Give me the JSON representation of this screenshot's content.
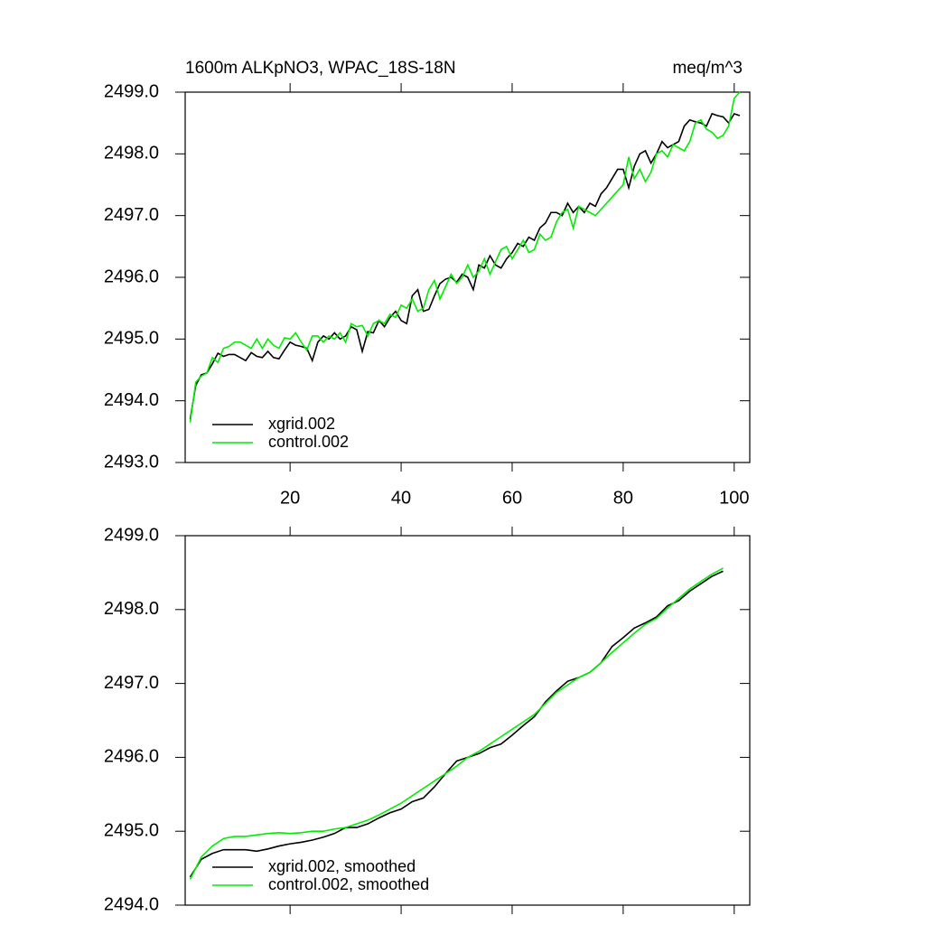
{
  "chart_data": [
    {
      "type": "line",
      "title": "1600m ALKpNO3, WPAC_18S-18N",
      "units": "meq/m^3",
      "x": [
        2,
        3,
        4,
        5,
        6,
        7,
        8,
        9,
        10,
        11,
        12,
        13,
        14,
        15,
        16,
        17,
        18,
        19,
        20,
        21,
        22,
        23,
        24,
        25,
        26,
        27,
        28,
        29,
        30,
        31,
        32,
        33,
        34,
        35,
        36,
        37,
        38,
        39,
        40,
        41,
        42,
        43,
        44,
        45,
        46,
        47,
        48,
        49,
        50,
        51,
        52,
        53,
        54,
        55,
        56,
        57,
        58,
        59,
        60,
        61,
        62,
        63,
        64,
        65,
        66,
        67,
        68,
        69,
        70,
        71,
        72,
        73,
        74,
        75,
        76,
        77,
        78,
        79,
        80,
        81,
        82,
        83,
        84,
        85,
        86,
        87,
        88,
        89,
        90,
        91,
        92,
        93,
        94,
        95,
        96,
        97,
        98,
        99,
        100,
        101
      ],
      "series": [
        {
          "name": "xgrid.002",
          "color": "#000000",
          "values": [
            2493.7,
            2494.25,
            2494.42,
            2494.45,
            2494.6,
            2494.77,
            2494.72,
            2494.75,
            2494.75,
            2494.7,
            2494.65,
            2494.78,
            2494.72,
            2494.7,
            2494.8,
            2494.7,
            2494.68,
            2494.82,
            2494.95,
            2494.9,
            2494.88,
            2494.85,
            2494.65,
            2494.95,
            2495.05,
            2495.0,
            2495.1,
            2495.0,
            2495.05,
            2495.2,
            2495.15,
            2494.8,
            2495.12,
            2495.1,
            2495.3,
            2495.2,
            2495.35,
            2495.45,
            2495.3,
            2495.25,
            2495.7,
            2495.8,
            2495.45,
            2495.48,
            2495.7,
            2495.9,
            2495.97,
            2496.0,
            2495.92,
            2496.05,
            2496.0,
            2495.8,
            2496.2,
            2496.15,
            2496.35,
            2496.2,
            2496.15,
            2496.3,
            2496.4,
            2496.55,
            2496.5,
            2496.65,
            2496.6,
            2496.8,
            2496.88,
            2497.05,
            2497.05,
            2497.0,
            2497.2,
            2497.05,
            2497.15,
            2497.05,
            2497.2,
            2497.15,
            2497.35,
            2497.45,
            2497.6,
            2497.75,
            2497.75,
            2497.45,
            2497.8,
            2498.0,
            2498.05,
            2497.85,
            2498.0,
            2498.2,
            2498.1,
            2498.15,
            2498.2,
            2498.45,
            2498.55,
            2498.52,
            2498.5,
            2498.45,
            2498.65,
            2498.62,
            2498.6,
            2498.5,
            2498.65,
            2498.62
          ]
        },
        {
          "name": "control.002",
          "color": "#00ee00",
          "values": [
            2493.65,
            2494.3,
            2494.4,
            2494.45,
            2494.7,
            2494.62,
            2494.85,
            2494.88,
            2494.95,
            2494.95,
            2494.9,
            2494.85,
            2495.0,
            2494.85,
            2495.0,
            2494.9,
            2494.85,
            2495.02,
            2495.0,
            2495.1,
            2494.95,
            2494.82,
            2495.05,
            2495.05,
            2494.95,
            2495.05,
            2495.0,
            2495.1,
            2494.95,
            2495.25,
            2495.2,
            2495.22,
            2495.05,
            2495.25,
            2495.3,
            2495.25,
            2495.4,
            2495.35,
            2495.55,
            2495.5,
            2495.65,
            2495.45,
            2495.5,
            2495.8,
            2495.95,
            2495.65,
            2495.85,
            2496.05,
            2495.9,
            2496.0,
            2496.2,
            2496.0,
            2496.1,
            2496.3,
            2496.05,
            2496.25,
            2496.45,
            2496.5,
            2496.3,
            2496.45,
            2496.6,
            2496.4,
            2496.45,
            2496.7,
            2496.6,
            2496.65,
            2496.9,
            2497.05,
            2497.1,
            2496.8,
            2497.15,
            2497.1,
            2497.05,
            2497.0,
            2497.1,
            2497.2,
            2497.3,
            2497.4,
            2497.5,
            2497.95,
            2497.6,
            2497.75,
            2497.55,
            2497.7,
            2498.0,
            2498.05,
            2497.95,
            2498.15,
            2498.1,
            2498.05,
            2498.2,
            2498.5,
            2498.55,
            2498.4,
            2498.35,
            2498.25,
            2498.3,
            2498.45,
            2498.9,
            2499.0
          ]
        }
      ],
      "xlim": [
        1.1,
        102.8
      ],
      "xticks": [
        20,
        40,
        60,
        80,
        100
      ],
      "ylim": [
        2493,
        2499
      ],
      "yticks": [
        {
          "value": 2493,
          "label": "2493.0"
        },
        {
          "value": 2494,
          "label": "2494.0"
        },
        {
          "value": 2495,
          "label": "2495.0"
        },
        {
          "value": 2496,
          "label": "2496.0"
        },
        {
          "value": 2497,
          "label": "2497.0"
        },
        {
          "value": 2498,
          "label": "2498.0"
        },
        {
          "value": 2499,
          "label": "2499.0"
        }
      ],
      "legend": "lower left"
    },
    {
      "type": "line",
      "x": [
        2,
        4,
        6,
        8,
        10,
        12,
        14,
        16,
        18,
        20,
        22,
        24,
        26,
        28,
        30,
        32,
        34,
        36,
        38,
        40,
        42,
        44,
        46,
        48,
        50,
        52,
        54,
        56,
        58,
        60,
        62,
        64,
        66,
        68,
        70,
        72,
        74,
        76,
        78,
        80,
        82,
        84,
        86,
        88,
        90,
        92,
        94,
        96,
        98
      ],
      "series": [
        {
          "name": "xgrid.002, smoothed",
          "color": "#000000",
          "values": [
            2494.38,
            2494.62,
            2494.7,
            2494.75,
            2494.75,
            2494.75,
            2494.73,
            2494.76,
            2494.8,
            2494.83,
            2494.85,
            2494.88,
            2494.92,
            2494.97,
            2495.05,
            2495.05,
            2495.1,
            2495.18,
            2495.25,
            2495.3,
            2495.4,
            2495.45,
            2495.6,
            2495.78,
            2495.95,
            2496.0,
            2496.05,
            2496.13,
            2496.18,
            2496.3,
            2496.43,
            2496.55,
            2496.75,
            2496.9,
            2497.03,
            2497.08,
            2497.15,
            2497.28,
            2497.5,
            2497.62,
            2497.75,
            2497.82,
            2497.9,
            2498.05,
            2498.12,
            2498.25,
            2498.35,
            2498.45,
            2498.52
          ]
        },
        {
          "name": "control.002, smoothed",
          "color": "#00ee00",
          "values": [
            2494.35,
            2494.65,
            2494.8,
            2494.9,
            2494.93,
            2494.93,
            2494.95,
            2494.97,
            2494.98,
            2494.97,
            2494.98,
            2495.0,
            2495.0,
            2495.03,
            2495.05,
            2495.1,
            2495.15,
            2495.22,
            2495.3,
            2495.38,
            2495.48,
            2495.58,
            2495.68,
            2495.78,
            2495.88,
            2496.0,
            2496.08,
            2496.18,
            2496.28,
            2496.38,
            2496.48,
            2496.58,
            2496.73,
            2496.88,
            2496.98,
            2497.08,
            2497.15,
            2497.28,
            2497.42,
            2497.55,
            2497.68,
            2497.8,
            2497.88,
            2498.02,
            2498.15,
            2498.28,
            2498.38,
            2498.48,
            2498.56
          ]
        }
      ],
      "xlim": [
        1.1,
        102.8
      ],
      "xticks": [
        20,
        40,
        60,
        80,
        100
      ],
      "ylim": [
        2494,
        2499
      ],
      "yticks": [
        {
          "value": 2494,
          "label": "2494.0"
        },
        {
          "value": 2495,
          "label": "2495.0"
        },
        {
          "value": 2496,
          "label": "2496.0"
        },
        {
          "value": 2497,
          "label": "2497.0"
        },
        {
          "value": 2498,
          "label": "2498.0"
        },
        {
          "value": 2499,
          "label": "2499.0"
        }
      ],
      "legend": "lower left"
    }
  ]
}
